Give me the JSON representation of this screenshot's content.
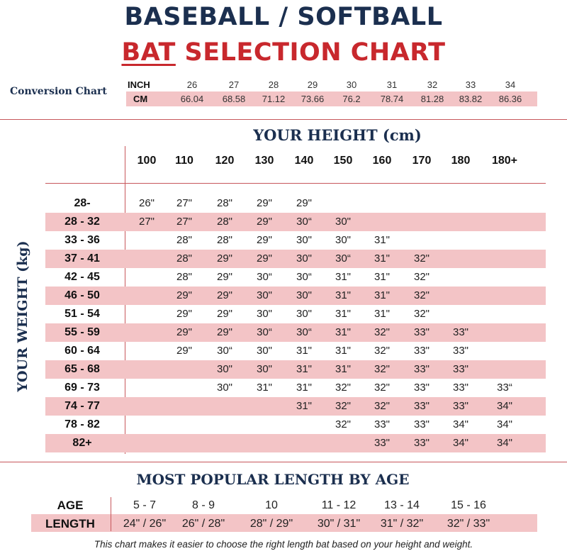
{
  "title": {
    "line1": "BASEBALL / SOFTBALL",
    "line2_emphasis": "BAT",
    "line2_rest": " SELECTION CHART"
  },
  "conversion": {
    "label": "Conversion Chart",
    "inch_label": "INCH",
    "cm_label": "CM",
    "inch": [
      "26",
      "27",
      "28",
      "29",
      "30",
      "31",
      "32",
      "33",
      "34"
    ],
    "cm": [
      "66.04",
      "68.58",
      "71.12",
      "73.66",
      "76.2",
      "78.74",
      "81.28",
      "83.82",
      "86.36"
    ]
  },
  "height_chart": {
    "height_title": "YOUR HEIGHT (cm)",
    "weight_title": "YOUR WEIGHT (kg)",
    "heights": [
      "100",
      "110",
      "120",
      "130",
      "140",
      "150",
      "160",
      "170",
      "180",
      "180+"
    ],
    "rows": [
      {
        "weight": "28-",
        "values": [
          "26\"",
          "27\"",
          "28\"",
          "29\"",
          "29\"",
          "",
          "",
          "",
          "",
          ""
        ]
      },
      {
        "weight": "28  -  32",
        "values": [
          "27\"",
          "27\"",
          "28\"",
          "29\"",
          "30“",
          "30\"",
          "",
          "",
          "",
          ""
        ]
      },
      {
        "weight": "33  -  36",
        "values": [
          "",
          "28\"",
          "28\"",
          "29\"",
          "30\"",
          "30\"",
          "31\"",
          "",
          "",
          ""
        ]
      },
      {
        "weight": "37  -  41",
        "values": [
          "",
          "28\"",
          "29\"",
          "29\"",
          "30\"",
          "30“",
          "31\"",
          "32\"",
          "",
          ""
        ]
      },
      {
        "weight": "42  -  45",
        "values": [
          "",
          "28\"",
          "29\"",
          "30“",
          "30“",
          "31\"",
          "31\"",
          "32\"",
          "",
          ""
        ]
      },
      {
        "weight": "46  -  50",
        "values": [
          "",
          "29\"",
          "29\"",
          "30\"",
          "30\"",
          "31\"",
          "31\"",
          "32\"",
          "",
          ""
        ]
      },
      {
        "weight": "51  -  54",
        "values": [
          "",
          "29\"",
          "29\"",
          "30\"",
          "30\"",
          "31\"",
          "31\"",
          "32\"",
          "",
          ""
        ]
      },
      {
        "weight": "55  -  59",
        "values": [
          "",
          "29\"",
          "29\"",
          "30“",
          "30“",
          "31\"",
          "32\"",
          "33\"",
          "33\"",
          ""
        ]
      },
      {
        "weight": "60  -  64",
        "values": [
          "",
          "29\"",
          "30“",
          "30\"",
          "31\"",
          "31\"",
          "32\"",
          "33\"",
          "33\"",
          ""
        ]
      },
      {
        "weight": "65  -  68",
        "values": [
          "",
          "",
          "30\"",
          "30\"",
          "31\"",
          "31\"",
          "32\"",
          "33\"",
          "33\"",
          ""
        ]
      },
      {
        "weight": "69  -  73",
        "values": [
          "",
          "",
          "30\"",
          "31\"",
          "31\"",
          "32\"",
          "32\"",
          "33\"",
          "33\"",
          "33“"
        ]
      },
      {
        "weight": "74  -  77",
        "values": [
          "",
          "",
          "",
          "",
          "31\"",
          "32\"",
          "32\"",
          "33\"",
          "33\"",
          "34\""
        ]
      },
      {
        "weight": "78  -  82",
        "values": [
          "",
          "",
          "",
          "",
          "",
          "32\"",
          "33\"",
          "33\"",
          "34\"",
          "34\""
        ]
      },
      {
        "weight": "82+",
        "values": [
          "",
          "",
          "",
          "",
          "",
          "",
          "33\"",
          "33\"",
          "34\"",
          "34\""
        ]
      }
    ]
  },
  "popular": {
    "title": "MOST POPULAR LENGTH BY AGE",
    "age_label": "AGE",
    "length_label": "LENGTH",
    "ages": [
      "5  -  7",
      "8  -  9",
      "10",
      "11  -  12",
      "13  -  14",
      "15  -  16"
    ],
    "lengths": [
      "24\" / 26\"",
      "26\" / 28\"",
      "28\" / 29\"",
      "30\" / 31\"",
      "31\" / 32\"",
      "32\" / 33\""
    ]
  },
  "footer": "This chart makes it easier to choose the right length bat based on your height and weight.",
  "colors": {
    "navy": "#1b2f4f",
    "red": "#c8282d",
    "band_pink": "#f3c4c6",
    "rule": "#c7575b"
  }
}
